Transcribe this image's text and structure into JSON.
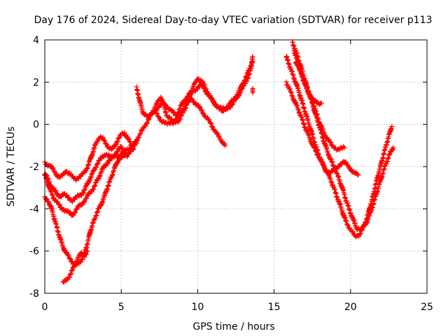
{
  "chart_data": {
    "type": "scatter",
    "title": "Day 176 of 2024, Sidereal Day-to-day VTEC variation (SDTVAR) for receiver p113",
    "xlabel": "GPS time / hours",
    "ylabel": "SDTVAR / TECUs",
    "xlim": [
      0,
      25
    ],
    "ylim": [
      -8,
      4
    ],
    "xticks": [
      0,
      5,
      10,
      15,
      20,
      25
    ],
    "yticks": [
      -8,
      -6,
      -4,
      -2,
      0,
      2,
      4
    ],
    "grid": true,
    "marker": "+",
    "color": "#ff0000",
    "series": [
      {
        "name": "track-1",
        "x": [
          0.0,
          0.2,
          0.4,
          0.6,
          0.8,
          1.0,
          1.2,
          1.4,
          1.6,
          1.8,
          2.0,
          2.2,
          2.4,
          2.6,
          2.8,
          3.0,
          3.2,
          3.4,
          3.6,
          3.8,
          4.0,
          4.2,
          4.4,
          4.6,
          4.8,
          5.0,
          5.2,
          5.4,
          5.6,
          5.8
        ],
        "y": [
          -1.8,
          -1.9,
          -2.0,
          -2.2,
          -2.4,
          -2.5,
          -2.4,
          -2.2,
          -2.3,
          -2.5,
          -2.6,
          -2.5,
          -2.4,
          -2.3,
          -2.0,
          -1.6,
          -1.2,
          -0.8,
          -0.6,
          -0.7,
          -0.9,
          -1.1,
          -1.2,
          -1.0,
          -0.7,
          -0.5,
          -0.4,
          -0.6,
          -0.9,
          -1.2
        ]
      },
      {
        "name": "track-2",
        "x": [
          0.0,
          0.2,
          0.4,
          0.6,
          0.8,
          1.0,
          1.2,
          1.4,
          1.6,
          1.8,
          2.0,
          2.2,
          2.4,
          2.6,
          2.8,
          3.0,
          3.2,
          3.4,
          3.6,
          3.8,
          4.0,
          4.2,
          4.4,
          4.6,
          4.8,
          5.0,
          5.2,
          5.4,
          5.6,
          5.8,
          6.0
        ],
        "y": [
          -2.3,
          -2.6,
          -2.9,
          -3.1,
          -3.3,
          -3.4,
          -3.3,
          -3.4,
          -3.5,
          -3.6,
          -3.5,
          -3.4,
          -3.3,
          -3.1,
          -2.8,
          -2.5,
          -2.2,
          -1.9,
          -1.7,
          -1.5,
          -1.4,
          -1.5,
          -1.6,
          -1.4,
          -1.2,
          -1.1,
          -1.3,
          -1.5,
          -1.3,
          -1.0,
          -0.8
        ]
      },
      {
        "name": "track-3",
        "x": [
          0.0,
          0.2,
          0.4,
          0.6,
          0.8,
          1.0,
          1.2,
          1.4,
          1.6,
          1.8,
          2.0,
          2.2,
          2.4,
          2.6,
          2.8,
          3.0,
          3.2,
          3.4,
          3.6,
          3.8,
          4.0,
          4.2,
          4.4,
          4.6,
          4.8,
          5.0,
          5.2,
          5.4,
          5.6,
          5.8,
          6.0
        ],
        "y": [
          -2.4,
          -2.8,
          -3.2,
          -3.5,
          -3.7,
          -3.9,
          -4.0,
          -4.1,
          -4.2,
          -4.3,
          -4.1,
          -3.9,
          -3.8,
          -3.6,
          -3.4,
          -3.2,
          -3.0,
          -2.7,
          -2.4,
          -2.1,
          -1.9,
          -1.7,
          -1.6,
          -1.5,
          -1.5,
          -1.4,
          -1.3,
          -1.2,
          -1.1,
          -1.0,
          -0.9
        ]
      },
      {
        "name": "track-4",
        "x": [
          0.0,
          0.2,
          0.4,
          0.6,
          0.8,
          1.0,
          1.2,
          1.4,
          1.6,
          1.8,
          2.0,
          2.2,
          2.4,
          2.6,
          2.8,
          3.0,
          3.2,
          3.4,
          3.6,
          3.8,
          4.0,
          4.2,
          4.4,
          4.6,
          4.8,
          5.0
        ],
        "y": [
          -3.5,
          -3.6,
          -3.9,
          -4.4,
          -4.9,
          -5.4,
          -5.8,
          -6.1,
          -6.3,
          -6.5,
          -6.7,
          -6.6,
          -6.4,
          -6.1,
          -5.6,
          -5.0,
          -4.6,
          -4.2,
          -3.9,
          -3.6,
          -3.2,
          -2.8,
          -2.4,
          -2.0,
          -1.7,
          -1.5
        ]
      },
      {
        "name": "track-5",
        "x": [
          1.2,
          1.4,
          1.6,
          1.8,
          2.0,
          2.2,
          2.4,
          2.6,
          2.8
        ],
        "y": [
          -7.5,
          -7.4,
          -7.2,
          -6.9,
          -6.6,
          -6.3,
          -6.1,
          -6.2,
          -6.0
        ]
      },
      {
        "name": "track-6",
        "x": [
          5.0,
          5.4,
          5.8,
          6.2,
          6.6,
          7.0,
          7.4,
          7.8,
          8.2,
          8.6,
          9.0,
          9.4,
          9.8,
          10.2,
          10.6,
          11.0,
          11.4,
          11.8,
          12.2,
          12.6,
          13.0,
          13.4,
          13.6
        ],
        "y": [
          -1.6,
          -1.4,
          -1.0,
          -0.5,
          0.0,
          0.5,
          0.8,
          1.0,
          0.7,
          0.4,
          1.0,
          1.4,
          1.6,
          1.9,
          1.5,
          1.1,
          0.8,
          0.7,
          0.9,
          1.3,
          1.8,
          2.4,
          3.2
        ]
      },
      {
        "name": "track-7",
        "x": [
          6.0,
          6.4,
          6.8,
          7.2,
          7.6,
          8.0,
          8.4,
          8.8,
          9.2,
          9.6,
          10.0,
          10.4,
          10.8,
          11.2,
          11.6,
          12.0,
          12.4,
          12.8,
          13.2,
          13.6
        ],
        "y": [
          1.7,
          0.6,
          0.3,
          0.8,
          1.3,
          0.4,
          0.1,
          0.2,
          0.8,
          1.6,
          2.2,
          1.9,
          1.3,
          0.9,
          0.6,
          0.9,
          1.2,
          1.7,
          2.3,
          3.0
        ]
      },
      {
        "name": "track-8",
        "x": [
          7.2,
          7.6,
          8.0,
          8.4,
          8.8,
          9.2,
          9.6,
          10.0,
          10.4,
          10.8,
          11.2,
          11.6,
          11.8
        ],
        "y": [
          0.6,
          0.2,
          0.0,
          0.1,
          0.4,
          0.9,
          1.2,
          0.9,
          0.5,
          0.1,
          -0.4,
          -0.8,
          -1.0
        ]
      },
      {
        "name": "track-9",
        "x": [
          13.6
        ],
        "y": [
          1.6
        ]
      },
      {
        "name": "track-10",
        "x": [
          15.8,
          16.0,
          16.3,
          16.6,
          16.9,
          17.2,
          17.5,
          17.8,
          18.1,
          18.4,
          18.7,
          19.0,
          19.3,
          19.6,
          19.9,
          20.2,
          20.5
        ],
        "y": [
          3.2,
          2.8,
          2.2,
          1.6,
          0.9,
          0.2,
          -0.5,
          -1.2,
          -1.8,
          -2.2,
          -2.3,
          -2.1,
          -1.9,
          -1.8,
          -2.0,
          -2.3,
          -2.4
        ]
      },
      {
        "name": "track-11",
        "x": [
          16.2,
          16.5,
          16.8,
          17.1,
          17.4,
          17.7,
          18.0,
          18.3,
          18.6,
          18.9,
          19.2,
          19.5,
          19.8,
          20.1,
          20.4,
          20.7,
          21.0,
          21.3,
          21.6,
          21.9,
          22.2,
          22.5,
          22.8
        ],
        "y": [
          3.9,
          3.3,
          2.6,
          1.9,
          1.2,
          0.5,
          -0.2,
          -0.9,
          -1.5,
          -2.0,
          -2.5,
          -3.1,
          -3.8,
          -4.4,
          -4.9,
          -5.0,
          -4.7,
          -4.2,
          -3.5,
          -2.8,
          -2.1,
          -1.5,
          -1.1
        ]
      },
      {
        "name": "track-12",
        "x": [
          15.8,
          16.1,
          16.4,
          16.7,
          17.0,
          17.3,
          17.6,
          17.9,
          18.2,
          18.5,
          18.8,
          19.1,
          19.4,
          19.7,
          20.0,
          20.3,
          20.6,
          20.9,
          21.2,
          21.5,
          21.8,
          22.1,
          22.4,
          22.7
        ],
        "y": [
          2.0,
          1.5,
          1.0,
          0.5,
          -0.1,
          -0.6,
          -1.1,
          -1.5,
          -1.9,
          -2.3,
          -2.8,
          -3.4,
          -4.0,
          -4.6,
          -5.0,
          -5.3,
          -5.2,
          -4.8,
          -4.1,
          -3.3,
          -2.4,
          -1.6,
          -0.8,
          -0.1
        ]
      },
      {
        "name": "track-13",
        "x": [
          16.3,
          16.6,
          16.9,
          17.2,
          17.5,
          17.8,
          18.1
        ],
        "y": [
          3.5,
          2.8,
          2.1,
          1.6,
          1.2,
          1.0,
          1.0
        ]
      },
      {
        "name": "track-14",
        "x": [
          16.4,
          16.8,
          17.2,
          17.6,
          18.0,
          18.4,
          18.8,
          19.2,
          19.6
        ],
        "y": [
          3.0,
          2.4,
          1.6,
          0.9,
          0.0,
          -0.6,
          -1.0,
          -1.2,
          -1.1
        ]
      }
    ]
  }
}
